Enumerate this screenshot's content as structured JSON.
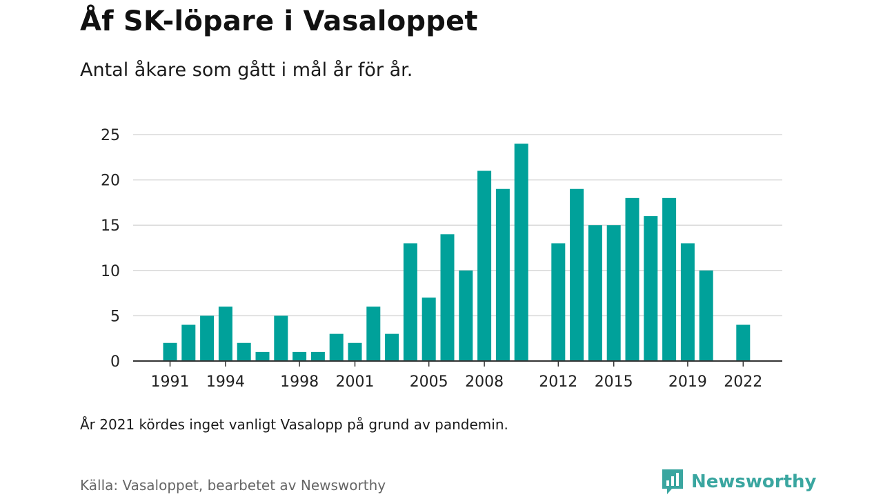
{
  "header": {
    "title": "Åf SK-löpare i Vasaloppet",
    "subtitle": "Antal åkare som gått i mål år för år."
  },
  "note": "År 2021 kördes inget vanligt Vasalopp på grund av pandemin.",
  "source": "Källa: Vasaloppet, bearbetet av Newsworthy",
  "brand": {
    "name": "Newsworthy",
    "color": "#3aa6a0"
  },
  "chart_data": {
    "type": "bar",
    "x": [
      1991,
      1992,
      1993,
      1994,
      1995,
      1996,
      1997,
      1998,
      1999,
      2000,
      2001,
      2002,
      2003,
      2004,
      2005,
      2006,
      2007,
      2008,
      2009,
      2010,
      2011,
      2012,
      2013,
      2014,
      2015,
      2016,
      2017,
      2018,
      2019,
      2020,
      2021,
      2022
    ],
    "values": [
      2,
      4,
      5,
      6,
      2,
      1,
      5,
      1,
      1,
      3,
      2,
      6,
      3,
      13,
      7,
      14,
      10,
      21,
      19,
      24,
      null,
      13,
      19,
      15,
      15,
      18,
      16,
      18,
      13,
      10,
      null,
      4
    ],
    "xticks": [
      1991,
      1994,
      1998,
      2001,
      2005,
      2008,
      2012,
      2015,
      2019,
      2022
    ],
    "yticks": [
      0,
      5,
      10,
      15,
      20,
      25
    ],
    "ylim": [
      0,
      25
    ],
    "grid": true,
    "bar_color": "#00a19a"
  }
}
